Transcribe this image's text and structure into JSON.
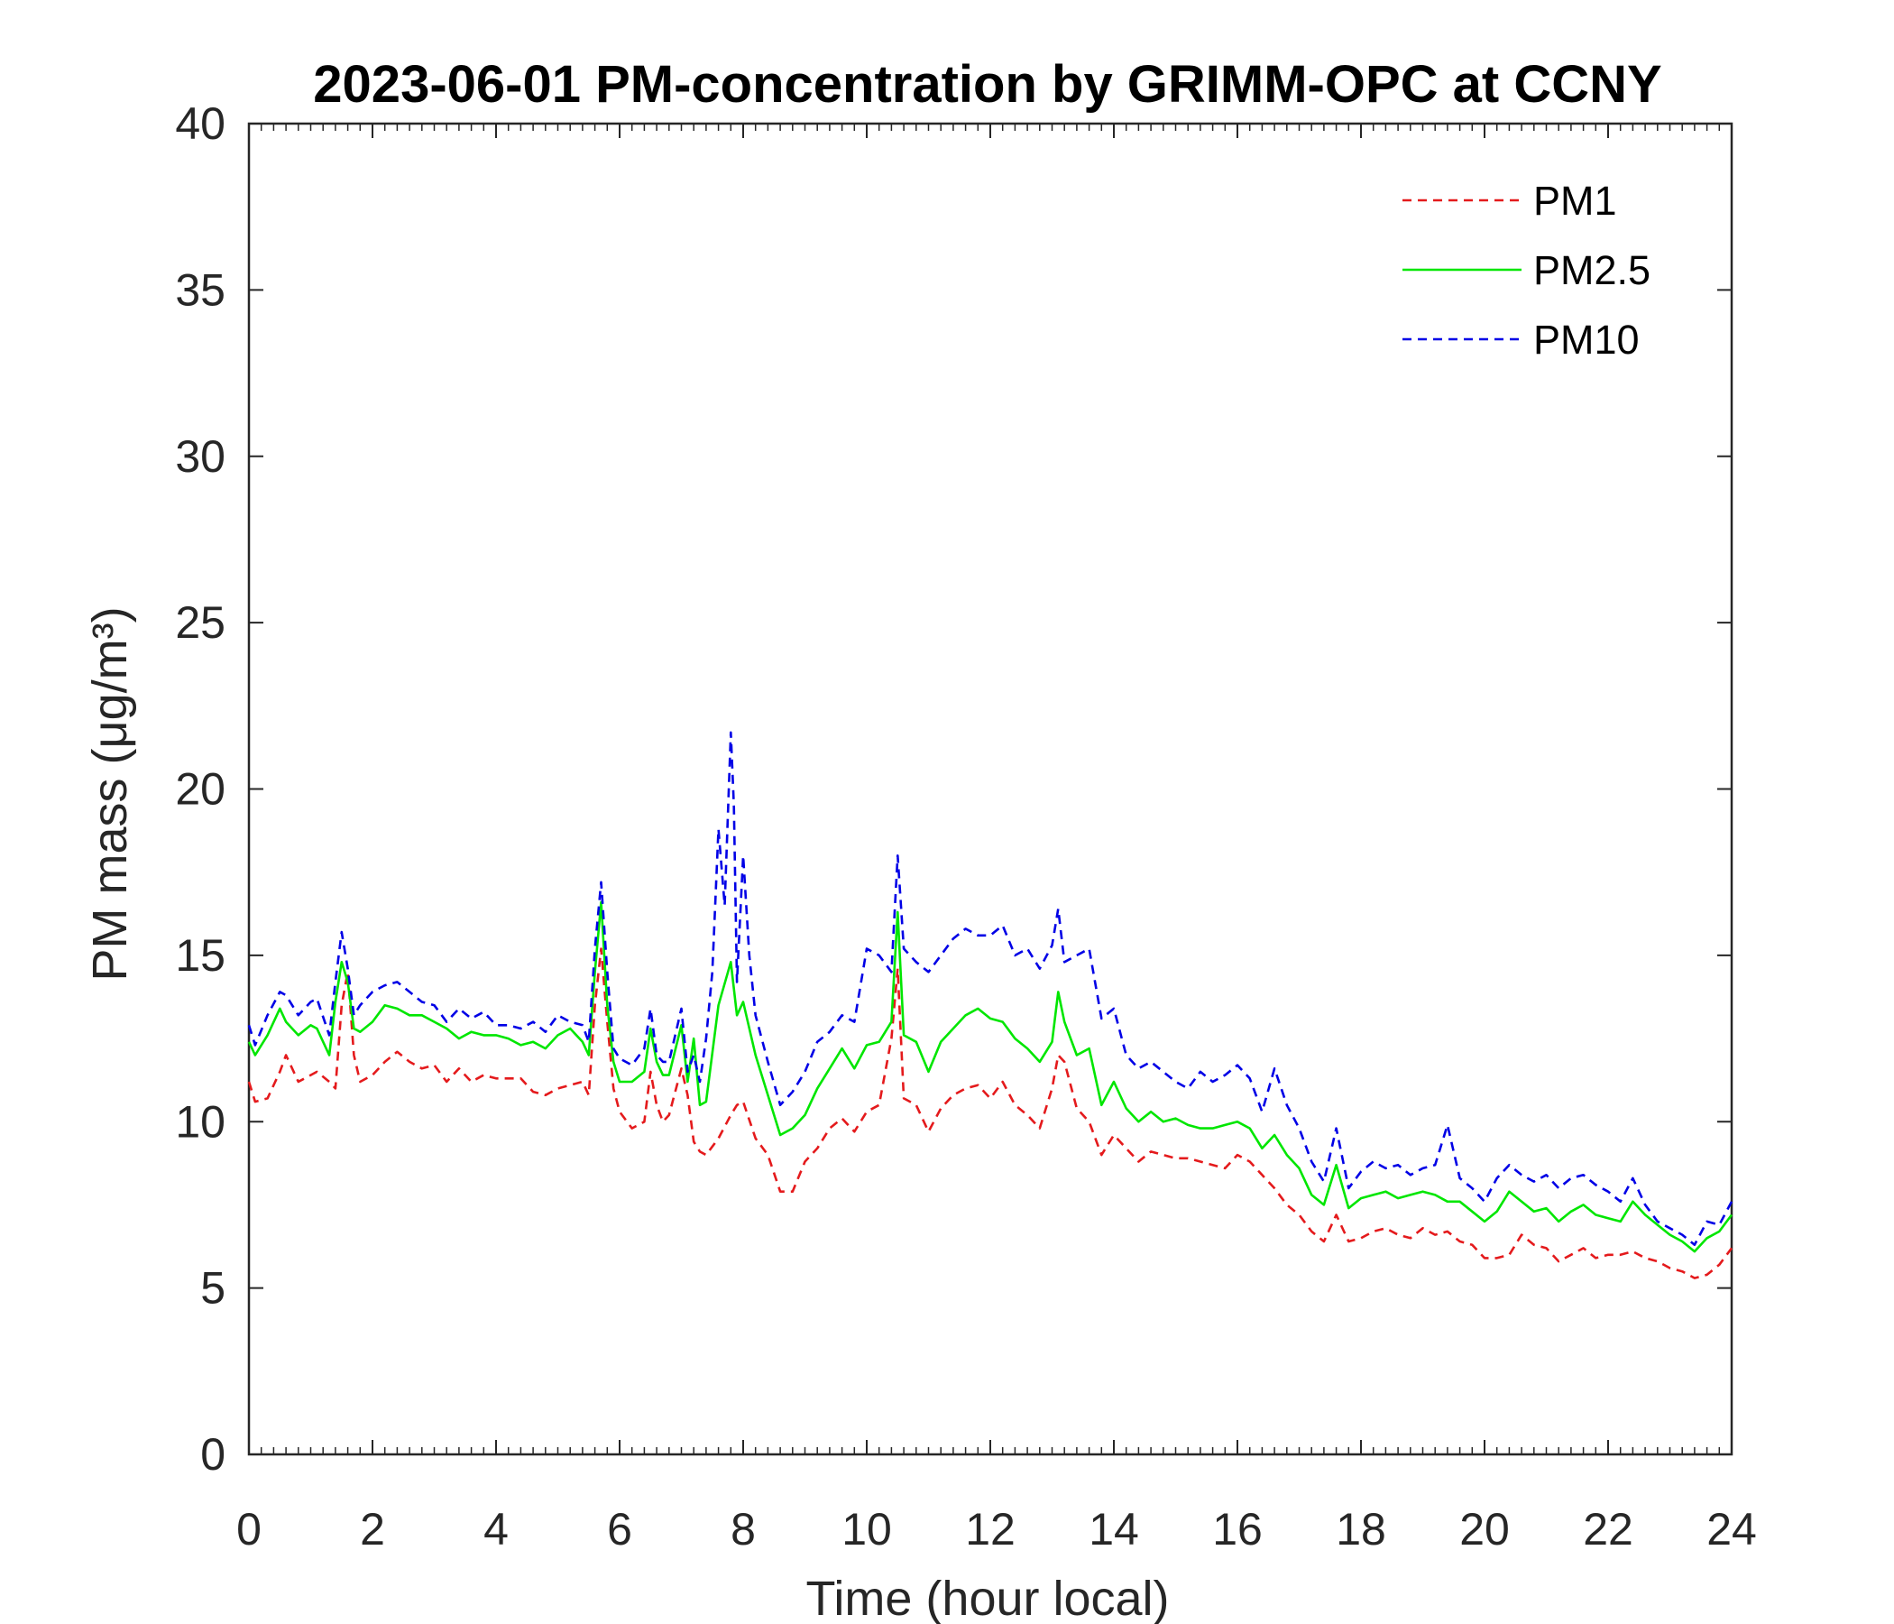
{
  "chart_data": {
    "type": "line",
    "title": "2023-06-01 PM-concentration by GRIMM-OPC at CCNY",
    "xlabel": "Time (hour local)",
    "ylabel": "PM mass (μg/m³)",
    "xlim": [
      0,
      24
    ],
    "ylim": [
      0,
      40
    ],
    "xticks": [
      "0",
      "2",
      "4",
      "6",
      "8",
      "10",
      "12",
      "14",
      "16",
      "18",
      "20",
      "22",
      "24"
    ],
    "yticks": [
      "0",
      "5",
      "10",
      "15",
      "20",
      "25",
      "30",
      "35",
      "40"
    ],
    "grid": false,
    "legend_position": "top-right",
    "series": [
      {
        "name": "PM1",
        "color": "#e41a1c",
        "style": "dashed",
        "x": [
          0,
          0.1,
          0.3,
          0.5,
          0.6,
          0.8,
          1.0,
          1.1,
          1.3,
          1.4,
          1.5,
          1.6,
          1.7,
          1.8,
          2.0,
          2.2,
          2.4,
          2.6,
          2.8,
          3.0,
          3.2,
          3.4,
          3.6,
          3.8,
          4.0,
          4.2,
          4.4,
          4.6,
          4.8,
          5.0,
          5.2,
          5.4,
          5.5,
          5.6,
          5.7,
          5.8,
          5.9,
          6.0,
          6.2,
          6.4,
          6.5,
          6.6,
          6.7,
          6.8,
          7.0,
          7.1,
          7.2,
          7.3,
          7.4,
          7.6,
          7.8,
          7.9,
          8.0,
          8.2,
          8.4,
          8.6,
          8.8,
          9.0,
          9.2,
          9.4,
          9.6,
          9.8,
          10.0,
          10.2,
          10.4,
          10.5,
          10.6,
          10.8,
          11.0,
          11.2,
          11.4,
          11.6,
          11.8,
          12.0,
          12.2,
          12.4,
          12.6,
          12.8,
          13.0,
          13.1,
          13.2,
          13.4,
          13.6,
          13.8,
          14.0,
          14.2,
          14.4,
          14.6,
          14.8,
          15.0,
          15.2,
          15.4,
          15.6,
          15.8,
          16.0,
          16.2,
          16.4,
          16.6,
          16.8,
          17.0,
          17.2,
          17.4,
          17.6,
          17.8,
          18.0,
          18.2,
          18.4,
          18.6,
          18.8,
          19.0,
          19.2,
          19.4,
          19.6,
          19.8,
          20.0,
          20.2,
          20.4,
          20.6,
          20.8,
          21.0,
          21.2,
          21.4,
          21.6,
          21.8,
          22.0,
          22.2,
          22.4,
          22.6,
          22.8,
          23.0,
          23.2,
          23.4,
          23.6,
          23.8,
          24.0
        ],
        "y": [
          11.2,
          10.6,
          10.7,
          11.5,
          12.0,
          11.2,
          11.4,
          11.5,
          11.2,
          11.0,
          13.5,
          14.5,
          12.0,
          11.2,
          11.4,
          11.8,
          12.1,
          11.8,
          11.6,
          11.7,
          11.2,
          11.6,
          11.2,
          11.4,
          11.3,
          11.3,
          11.3,
          10.9,
          10.8,
          11.0,
          11.1,
          11.2,
          10.8,
          13.5,
          15.2,
          13.0,
          11.0,
          10.3,
          9.8,
          10.0,
          11.5,
          10.5,
          10.0,
          10.2,
          11.6,
          10.8,
          9.4,
          9.1,
          9.0,
          9.5,
          10.2,
          10.5,
          10.6,
          9.5,
          9.0,
          7.9,
          7.9,
          8.8,
          9.2,
          9.8,
          10.1,
          9.7,
          10.3,
          10.5,
          12.5,
          14.6,
          10.7,
          10.5,
          9.7,
          10.4,
          10.8,
          11.0,
          11.1,
          10.7,
          11.2,
          10.5,
          10.2,
          9.8,
          11.0,
          12.0,
          11.8,
          10.4,
          10.0,
          9.0,
          9.6,
          9.2,
          8.8,
          9.1,
          9.0,
          8.9,
          8.9,
          8.8,
          8.7,
          8.6,
          9.0,
          8.8,
          8.4,
          8.0,
          7.5,
          7.2,
          6.7,
          6.4,
          7.2,
          6.4,
          6.5,
          6.7,
          6.8,
          6.6,
          6.5,
          6.8,
          6.6,
          6.7,
          6.4,
          6.3,
          5.9,
          5.9,
          6.0,
          6.6,
          6.3,
          6.2,
          5.8,
          6.0,
          6.2,
          5.9,
          6.0,
          6.0,
          6.1,
          5.9,
          5.8,
          5.6,
          5.5,
          5.3,
          5.4,
          5.7,
          6.2
        ]
      },
      {
        "name": "PM2.5",
        "color": "#00e600",
        "style": "solid",
        "x": [
          0,
          0.1,
          0.3,
          0.5,
          0.6,
          0.8,
          1.0,
          1.1,
          1.3,
          1.4,
          1.5,
          1.6,
          1.7,
          1.8,
          2.0,
          2.2,
          2.4,
          2.6,
          2.8,
          3.0,
          3.2,
          3.4,
          3.6,
          3.8,
          4.0,
          4.2,
          4.4,
          4.6,
          4.8,
          5.0,
          5.2,
          5.4,
          5.5,
          5.6,
          5.7,
          5.8,
          5.9,
          6.0,
          6.2,
          6.4,
          6.5,
          6.6,
          6.7,
          6.8,
          7.0,
          7.1,
          7.2,
          7.3,
          7.4,
          7.6,
          7.8,
          7.9,
          8.0,
          8.2,
          8.4,
          8.6,
          8.8,
          9.0,
          9.2,
          9.4,
          9.6,
          9.8,
          10.0,
          10.2,
          10.4,
          10.5,
          10.6,
          10.8,
          11.0,
          11.2,
          11.4,
          11.6,
          11.8,
          12.0,
          12.2,
          12.4,
          12.6,
          12.8,
          13.0,
          13.1,
          13.2,
          13.4,
          13.6,
          13.8,
          14.0,
          14.2,
          14.4,
          14.6,
          14.8,
          15.0,
          15.2,
          15.4,
          15.6,
          15.8,
          16.0,
          16.2,
          16.4,
          16.6,
          16.8,
          17.0,
          17.2,
          17.4,
          17.6,
          17.8,
          18.0,
          18.2,
          18.4,
          18.6,
          18.8,
          19.0,
          19.2,
          19.4,
          19.6,
          19.8,
          20.0,
          20.2,
          20.4,
          20.6,
          20.8,
          21.0,
          21.2,
          21.4,
          21.6,
          21.8,
          22.0,
          22.2,
          22.4,
          22.6,
          22.8,
          23.0,
          23.2,
          23.4,
          23.6,
          23.8,
          24.0
        ],
        "y": [
          12.4,
          12.0,
          12.6,
          13.4,
          13.0,
          12.6,
          12.9,
          12.8,
          12.0,
          13.6,
          14.8,
          14.2,
          12.8,
          12.7,
          13.0,
          13.5,
          13.4,
          13.2,
          13.2,
          13.0,
          12.8,
          12.5,
          12.7,
          12.6,
          12.6,
          12.5,
          12.3,
          12.4,
          12.2,
          12.6,
          12.8,
          12.4,
          12.0,
          14.5,
          16.6,
          13.5,
          11.8,
          11.2,
          11.2,
          11.5,
          12.8,
          11.8,
          11.4,
          11.4,
          12.9,
          11.2,
          12.5,
          10.5,
          10.6,
          13.5,
          14.8,
          13.2,
          13.6,
          12.0,
          10.8,
          9.6,
          9.8,
          10.2,
          11.0,
          11.6,
          12.2,
          11.6,
          12.3,
          12.4,
          13.0,
          16.3,
          12.6,
          12.4,
          11.5,
          12.4,
          12.8,
          13.2,
          13.4,
          13.1,
          13.0,
          12.5,
          12.2,
          11.8,
          12.4,
          13.9,
          13.0,
          12.0,
          12.2,
          10.5,
          11.2,
          10.4,
          10.0,
          10.3,
          10.0,
          10.1,
          9.9,
          9.8,
          9.8,
          9.9,
          10.0,
          9.8,
          9.2,
          9.6,
          9.0,
          8.6,
          7.8,
          7.5,
          8.7,
          7.4,
          7.7,
          7.8,
          7.9,
          7.7,
          7.8,
          7.9,
          7.8,
          7.6,
          7.6,
          7.3,
          7.0,
          7.3,
          7.9,
          7.6,
          7.3,
          7.4,
          7.0,
          7.3,
          7.5,
          7.2,
          7.1,
          7.0,
          7.6,
          7.2,
          6.9,
          6.6,
          6.4,
          6.1,
          6.5,
          6.7,
          7.2
        ]
      },
      {
        "name": "PM10",
        "color": "#0000e6",
        "style": "dashed",
        "x": [
          0,
          0.1,
          0.3,
          0.5,
          0.6,
          0.8,
          1.0,
          1.1,
          1.3,
          1.4,
          1.5,
          1.6,
          1.7,
          1.8,
          2.0,
          2.2,
          2.4,
          2.6,
          2.8,
          3.0,
          3.2,
          3.4,
          3.6,
          3.8,
          4.0,
          4.2,
          4.4,
          4.6,
          4.8,
          5.0,
          5.2,
          5.4,
          5.5,
          5.6,
          5.7,
          5.8,
          5.9,
          6.0,
          6.2,
          6.4,
          6.5,
          6.6,
          6.7,
          6.8,
          7.0,
          7.1,
          7.2,
          7.3,
          7.4,
          7.5,
          7.6,
          7.7,
          7.8,
          7.85,
          7.9,
          8.0,
          8.1,
          8.2,
          8.4,
          8.6,
          8.8,
          9.0,
          9.2,
          9.4,
          9.6,
          9.8,
          10.0,
          10.2,
          10.4,
          10.5,
          10.6,
          10.8,
          11.0,
          11.2,
          11.4,
          11.6,
          11.8,
          12.0,
          12.2,
          12.4,
          12.6,
          12.8,
          13.0,
          13.1,
          13.2,
          13.4,
          13.6,
          13.8,
          14.0,
          14.2,
          14.4,
          14.6,
          14.8,
          15.0,
          15.2,
          15.4,
          15.6,
          15.8,
          16.0,
          16.2,
          16.4,
          16.6,
          16.8,
          17.0,
          17.2,
          17.4,
          17.6,
          17.8,
          18.0,
          18.2,
          18.4,
          18.6,
          18.8,
          19.0,
          19.2,
          19.4,
          19.6,
          19.8,
          20.0,
          20.2,
          20.4,
          20.6,
          20.8,
          21.0,
          21.2,
          21.4,
          21.6,
          21.8,
          22.0,
          22.2,
          22.4,
          22.6,
          22.8,
          23.0,
          23.2,
          23.4,
          23.6,
          23.8,
          24.0
        ],
        "y": [
          12.9,
          12.3,
          13.2,
          13.9,
          13.8,
          13.2,
          13.6,
          13.7,
          12.6,
          14.2,
          15.7,
          14.6,
          13.2,
          13.5,
          13.9,
          14.1,
          14.2,
          13.9,
          13.6,
          13.5,
          13.0,
          13.4,
          13.1,
          13.3,
          12.9,
          12.9,
          12.8,
          13.0,
          12.7,
          13.2,
          13.0,
          12.9,
          12.4,
          15.2,
          17.2,
          14.5,
          12.2,
          11.9,
          11.7,
          12.2,
          13.4,
          12.0,
          11.8,
          11.8,
          13.4,
          11.5,
          12.0,
          11.2,
          12.5,
          14.5,
          18.8,
          16.5,
          21.7,
          19.5,
          14.2,
          18.0,
          15.0,
          13.2,
          11.8,
          10.5,
          10.9,
          11.5,
          12.4,
          12.7,
          13.2,
          13.0,
          15.2,
          15.0,
          14.5,
          18.0,
          15.2,
          14.8,
          14.5,
          15.0,
          15.5,
          15.8,
          15.6,
          15.6,
          15.9,
          15.0,
          15.2,
          14.6,
          15.3,
          16.4,
          14.8,
          15.0,
          15.2,
          13.1,
          13.4,
          12.0,
          11.6,
          11.8,
          11.5,
          11.2,
          11.0,
          11.5,
          11.2,
          11.4,
          11.7,
          11.3,
          10.3,
          11.6,
          10.5,
          9.8,
          8.8,
          8.2,
          9.8,
          8.0,
          8.5,
          8.8,
          8.6,
          8.7,
          8.4,
          8.6,
          8.7,
          9.9,
          8.3,
          8.0,
          7.6,
          8.3,
          8.7,
          8.4,
          8.2,
          8.4,
          8.0,
          8.3,
          8.4,
          8.1,
          7.9,
          7.6,
          8.3,
          7.5,
          7.0,
          6.8,
          6.6,
          6.3,
          7.0,
          6.9,
          7.6
        ]
      }
    ]
  }
}
